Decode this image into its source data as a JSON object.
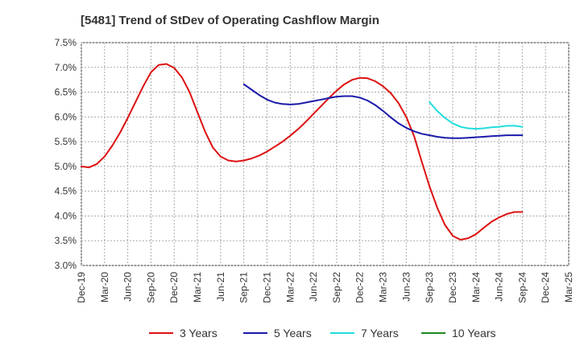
{
  "chart_data": {
    "type": "line",
    "title": "[5481]  Trend of StDev of Operating Cashflow Margin",
    "xlabel": "",
    "ylabel": "",
    "ylim": [
      3.0,
      7.5
    ],
    "y_ticks": [
      3.0,
      3.5,
      4.0,
      4.5,
      5.0,
      5.5,
      6.0,
      6.5,
      7.0,
      7.5
    ],
    "y_tick_labels": [
      "3.0%",
      "3.5%",
      "4.0%",
      "4.5%",
      "5.0%",
      "5.5%",
      "6.0%",
      "6.5%",
      "7.0%",
      "7.5%"
    ],
    "x_tick_labels": [
      "Dec-19",
      "Mar-20",
      "Jun-20",
      "Sep-20",
      "Dec-20",
      "Mar-21",
      "Jun-21",
      "Sep-21",
      "Dec-21",
      "Mar-22",
      "Jun-22",
      "Sep-22",
      "Dec-22",
      "Mar-23",
      "Jun-23",
      "Sep-23",
      "Dec-23",
      "Mar-24",
      "Jun-24",
      "Sep-24",
      "Dec-24",
      "Mar-25"
    ],
    "grid": true,
    "legend_position": "bottom",
    "series": [
      {
        "name": "3 Years",
        "color": "#dd1111",
        "points": [
          [
            "Dec-19",
            5.0
          ],
          [
            "Jan-20",
            4.98
          ],
          [
            "Feb-20",
            5.05
          ],
          [
            "Mar-20",
            5.2
          ],
          [
            "Apr-20",
            5.42
          ],
          [
            "May-20",
            5.68
          ],
          [
            "Jun-20",
            5.98
          ],
          [
            "Jul-20",
            6.3
          ],
          [
            "Aug-20",
            6.62
          ],
          [
            "Sep-20",
            6.9
          ],
          [
            "Oct-20",
            7.05
          ],
          [
            "Nov-20",
            7.07
          ],
          [
            "Dec-20",
            6.99
          ],
          [
            "Jan-21",
            6.8
          ],
          [
            "Feb-21",
            6.5
          ],
          [
            "Mar-21",
            6.1
          ],
          [
            "Apr-21",
            5.7
          ],
          [
            "May-21",
            5.38
          ],
          [
            "Jun-21",
            5.2
          ],
          [
            "Jul-21",
            5.12
          ],
          [
            "Aug-21",
            5.1
          ],
          [
            "Sep-21",
            5.12
          ],
          [
            "Oct-21",
            5.16
          ],
          [
            "Nov-21",
            5.22
          ],
          [
            "Dec-21",
            5.3
          ],
          [
            "Jan-22",
            5.4
          ],
          [
            "Feb-22",
            5.5
          ],
          [
            "Mar-22",
            5.62
          ],
          [
            "Apr-22",
            5.75
          ],
          [
            "May-22",
            5.9
          ],
          [
            "Jun-22",
            6.06
          ],
          [
            "Jul-22",
            6.22
          ],
          [
            "Aug-22",
            6.38
          ],
          [
            "Sep-22",
            6.53
          ],
          [
            "Oct-22",
            6.66
          ],
          [
            "Nov-22",
            6.75
          ],
          [
            "Dec-22",
            6.79
          ],
          [
            "Jan-23",
            6.78
          ],
          [
            "Feb-23",
            6.72
          ],
          [
            "Mar-23",
            6.62
          ],
          [
            "Apr-23",
            6.48
          ],
          [
            "May-23",
            6.28
          ],
          [
            "Jun-23",
            6.0
          ],
          [
            "Jul-23",
            5.62
          ],
          [
            "Aug-23",
            5.1
          ],
          [
            "Sep-23",
            4.6
          ],
          [
            "Oct-23",
            4.17
          ],
          [
            "Nov-23",
            3.82
          ],
          [
            "Dec-23",
            3.6
          ],
          [
            "Jan-24",
            3.52
          ],
          [
            "Feb-24",
            3.55
          ],
          [
            "Mar-24",
            3.63
          ],
          [
            "Apr-24",
            3.76
          ],
          [
            "May-24",
            3.88
          ],
          [
            "Jun-24",
            3.97
          ],
          [
            "Jul-24",
            4.04
          ],
          [
            "Aug-24",
            4.08
          ],
          [
            "Sep-24",
            4.08
          ]
        ]
      },
      {
        "name": "5 Years",
        "color": "#1a1aaa",
        "points": [
          [
            "Sep-21",
            6.66
          ],
          [
            "Oct-21",
            6.55
          ],
          [
            "Nov-21",
            6.44
          ],
          [
            "Dec-21",
            6.35
          ],
          [
            "Jan-22",
            6.29
          ],
          [
            "Feb-22",
            6.26
          ],
          [
            "Mar-22",
            6.25
          ],
          [
            "Apr-22",
            6.26
          ],
          [
            "May-22",
            6.29
          ],
          [
            "Jun-22",
            6.32
          ],
          [
            "Jul-22",
            6.35
          ],
          [
            "Aug-22",
            6.38
          ],
          [
            "Sep-22",
            6.41
          ],
          [
            "Oct-22",
            6.42
          ],
          [
            "Nov-22",
            6.42
          ],
          [
            "Dec-22",
            6.39
          ],
          [
            "Jan-23",
            6.33
          ],
          [
            "Feb-23",
            6.24
          ],
          [
            "Mar-23",
            6.12
          ],
          [
            "Apr-23",
            5.99
          ],
          [
            "May-23",
            5.87
          ],
          [
            "Jun-23",
            5.78
          ],
          [
            "Jul-23",
            5.71
          ],
          [
            "Aug-23",
            5.66
          ],
          [
            "Sep-23",
            5.63
          ],
          [
            "Oct-23",
            5.6
          ],
          [
            "Nov-23",
            5.58
          ],
          [
            "Dec-23",
            5.57
          ],
          [
            "Jan-24",
            5.57
          ],
          [
            "Feb-24",
            5.58
          ],
          [
            "Mar-24",
            5.59
          ],
          [
            "Apr-24",
            5.6
          ],
          [
            "May-24",
            5.61
          ],
          [
            "Jun-24",
            5.62
          ],
          [
            "Jul-24",
            5.63
          ],
          [
            "Aug-24",
            5.63
          ],
          [
            "Sep-24",
            5.63
          ]
        ]
      },
      {
        "name": "7 Years",
        "color": "#22dddd",
        "points": [
          [
            "Sep-23",
            6.3
          ],
          [
            "Oct-23",
            6.12
          ],
          [
            "Nov-23",
            5.98
          ],
          [
            "Dec-23",
            5.87
          ],
          [
            "Jan-24",
            5.8
          ],
          [
            "Feb-24",
            5.77
          ],
          [
            "Mar-24",
            5.76
          ],
          [
            "Apr-24",
            5.77
          ],
          [
            "May-24",
            5.79
          ],
          [
            "Jun-24",
            5.8
          ],
          [
            "Jul-24",
            5.82
          ],
          [
            "Aug-24",
            5.82
          ],
          [
            "Sep-24",
            5.8
          ]
        ]
      },
      {
        "name": "10 Years",
        "color": "#228822",
        "points": []
      }
    ]
  }
}
